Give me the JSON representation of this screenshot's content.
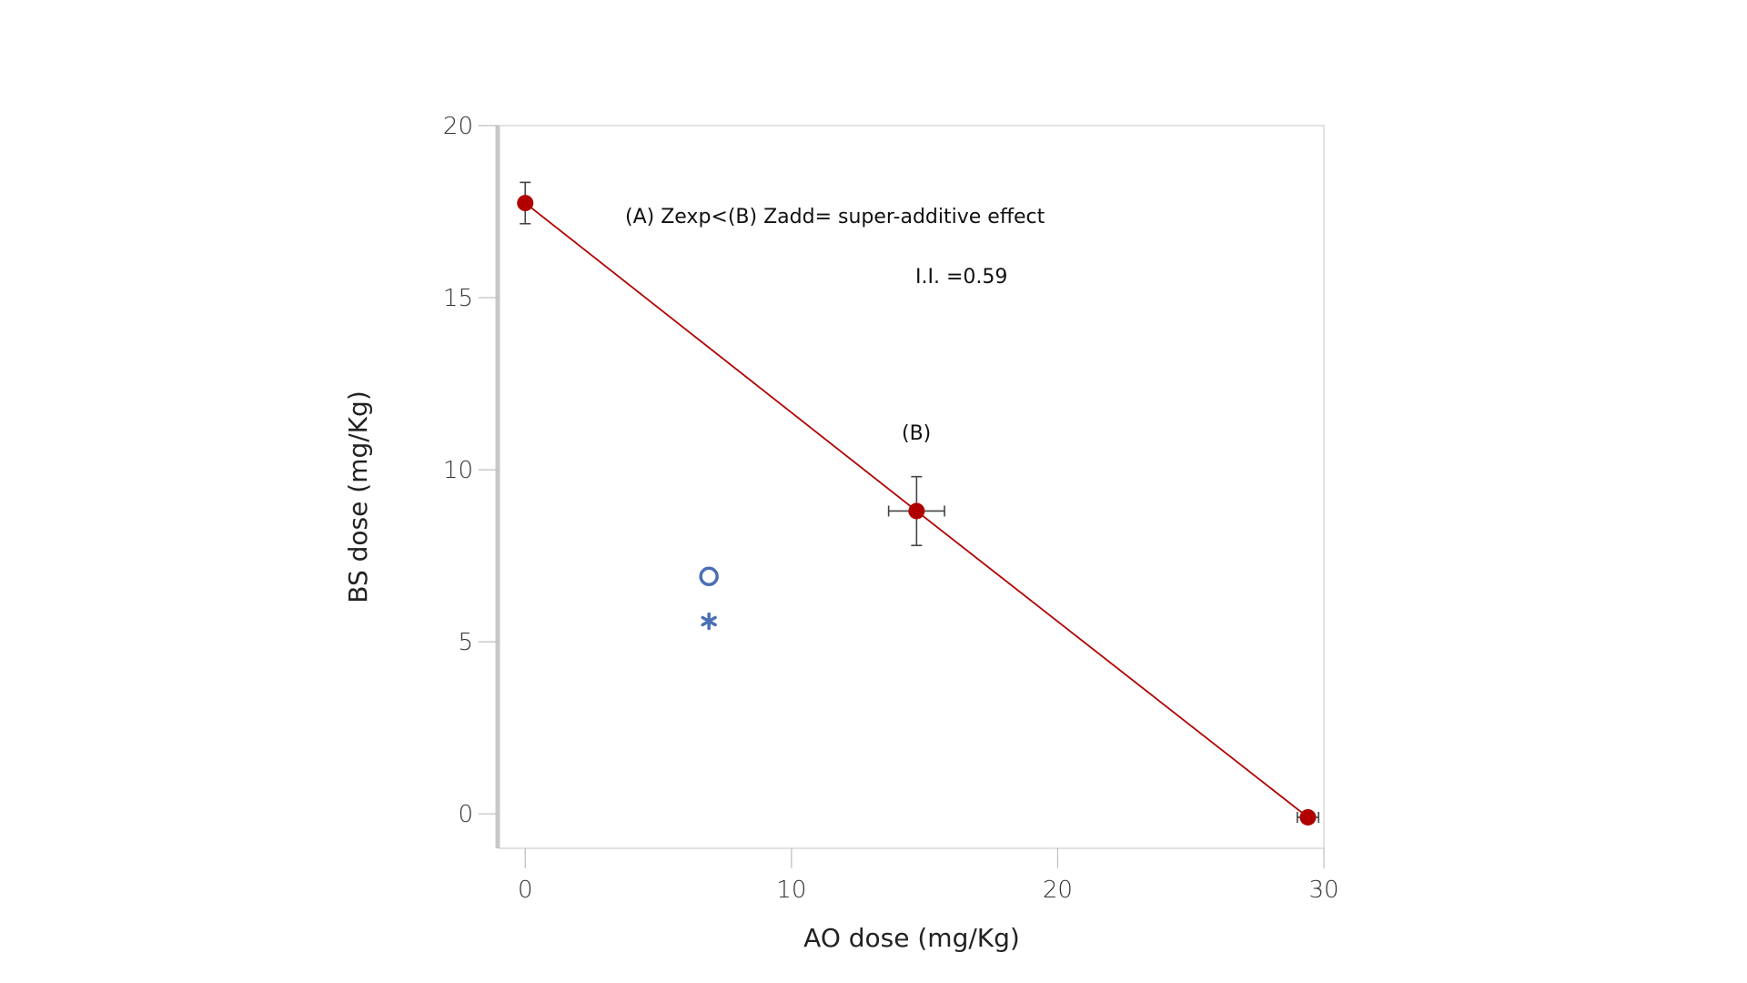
{
  "chart_data": {
    "type": "scatter",
    "xlabel": "AO dose (mg/Kg)",
    "ylabel": "BS dose (mg/Kg)",
    "xlim": [
      -1,
      30
    ],
    "ylim": [
      -1,
      20
    ],
    "xticks": [
      0,
      10,
      20,
      30
    ],
    "yticks": [
      0,
      5,
      10,
      15,
      20
    ],
    "grid": false,
    "isobole": {
      "color": "#b00000",
      "points": [
        {
          "x": 0,
          "y": 17.75,
          "yerr": 0.6,
          "xerr": 0
        },
        {
          "x": 14.7,
          "y": 8.8,
          "yerr": 1.0,
          "xerr": 1.05
        },
        {
          "x": 29.4,
          "y": -0.1,
          "yerr": 0,
          "xerr": 0.4
        }
      ]
    },
    "experimental": {
      "color": "#4a6fb5",
      "circle": {
        "x": 6.9,
        "y": 6.9
      },
      "asterisk": {
        "x": 6.9,
        "y": 5.6
      }
    },
    "annotations": {
      "title_line": "(A) Zexp<(B) Zadd= super-additive effect",
      "ii": "I.I. =0.59",
      "b_label": "(B)"
    }
  }
}
